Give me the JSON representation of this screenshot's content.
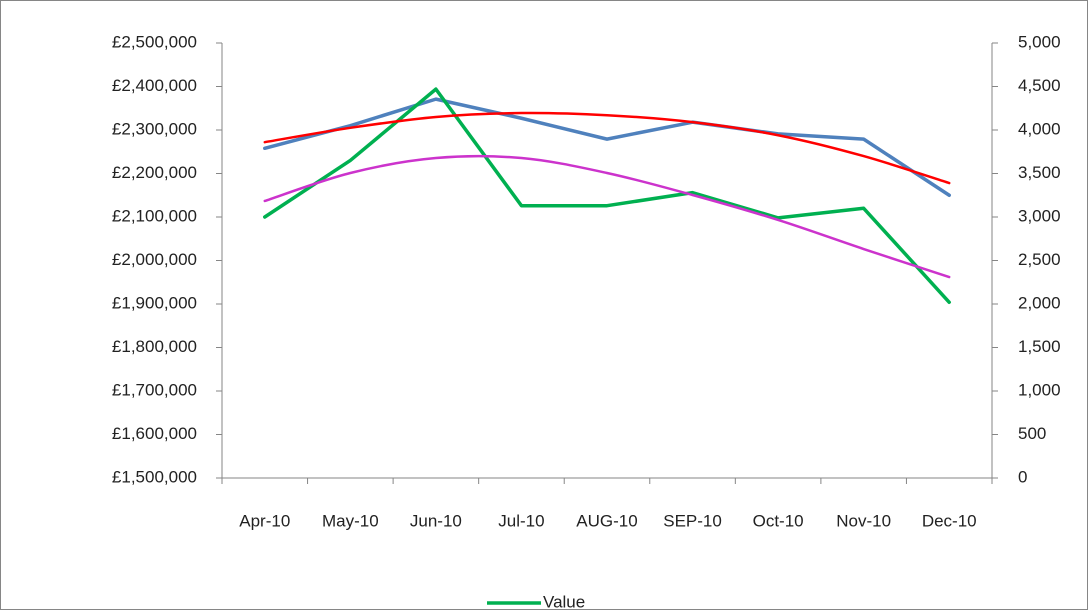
{
  "chart_data": {
    "type": "line",
    "categories": [
      "Apr-10",
      "May-10",
      "Jun-10",
      "Jul-10",
      "AUG-10",
      "SEP-10",
      "Oct-10",
      "Nov-10",
      "Dec-10"
    ],
    "series": [
      {
        "color": "#4f81bd",
        "values": [
          2258000,
          2310000,
          2371000,
          2327000,
          2279000,
          2318000,
          2291000,
          2279000,
          2150000
        ]
      },
      {
        "name": "Value",
        "color": "#00b050",
        "axis": "y2",
        "values": [
          3000,
          3650,
          4470,
          3130,
          3130,
          3280,
          2990,
          3100,
          2020
        ]
      },
      {
        "color": "#ff0000",
        "values": [
          2272000,
          2305000,
          2330000,
          2339000,
          2334000,
          2318000,
          2288000,
          2240000,
          2178000
        ]
      },
      {
        "color": "#cc33cc",
        "axis": "y2",
        "values": [
          3184,
          3506,
          3678,
          3678,
          3506,
          3253,
          2966,
          2632,
          2310
        ]
      }
    ],
    "ylim": [
      1500000,
      2500000
    ],
    "yticks": [
      {
        "value": 1500000,
        "label": "£1,500,000"
      },
      {
        "value": 1600000,
        "label": "£1,600,000"
      },
      {
        "value": 1700000,
        "label": "£1,700,000"
      },
      {
        "value": 1800000,
        "label": "£1,800,000"
      },
      {
        "value": 1900000,
        "label": "£1,900,000"
      },
      {
        "value": 2000000,
        "label": "£2,000,000"
      },
      {
        "value": 2100000,
        "label": "£2,100,000"
      },
      {
        "value": 2200000,
        "label": "£2,200,000"
      },
      {
        "value": 2300000,
        "label": "£2,300,000"
      },
      {
        "value": 2400000,
        "label": "£2,400,000"
      },
      {
        "value": 2500000,
        "label": "£2,500,000"
      }
    ],
    "y2lim": [
      0,
      5000
    ],
    "y2ticks": [
      0,
      500,
      {
        "value": 1000,
        "label": "1,000"
      },
      {
        "value": 1500,
        "label": "1,500"
      },
      {
        "value": 2000,
        "label": "2,000"
      },
      {
        "value": 2500,
        "label": "2,500"
      },
      {
        "value": 3000,
        "label": "3,000"
      },
      {
        "value": 3500,
        "label": "3,500"
      },
      {
        "value": 4000,
        "label": "4,000"
      },
      {
        "value": 4500,
        "label": "4,500"
      },
      {
        "value": 5000,
        "label": "5,000"
      }
    ],
    "legend": "bottom"
  }
}
